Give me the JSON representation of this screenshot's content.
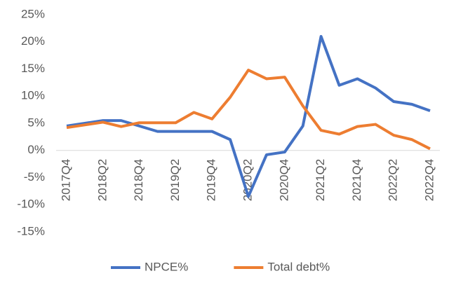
{
  "chart_data": {
    "type": "line",
    "categories": [
      "2017Q4",
      null,
      "2018Q2",
      null,
      "2018Q4",
      null,
      "2019Q2",
      null,
      "2019Q4",
      null,
      "2020Q2",
      null,
      "2020Q4",
      null,
      "2021Q2",
      null,
      "2021Q4",
      null,
      "2022Q2",
      null,
      "2022Q4"
    ],
    "series": [
      {
        "name": "NPCE%",
        "color": "#4472c4",
        "values": [
          4.5,
          5,
          5.5,
          5.5,
          4.5,
          3.5,
          3.5,
          3.5,
          3.5,
          2,
          -8.5,
          -0.8,
          -0.3,
          4.5,
          21,
          12,
          13.2,
          11.5,
          9,
          8.5,
          7.3
        ]
      },
      {
        "name": "Total debt%",
        "color": "#ed7d31",
        "values": [
          4.2,
          4.7,
          5.2,
          4.4,
          5.1,
          5.1,
          5.1,
          7,
          5.8,
          9.8,
          14.8,
          13.2,
          13.5,
          8.2,
          3.7,
          3.0,
          4.4,
          4.8,
          2.8,
          2,
          0.3
        ]
      }
    ],
    "ylim": [
      -15,
      25
    ],
    "yticks": [
      {
        "value": -15,
        "label": "-15%"
      },
      {
        "value": -10,
        "label": "-10%"
      },
      {
        "value": -5,
        "label": "-5%"
      },
      {
        "value": 0,
        "label": "0%"
      },
      {
        "value": 5,
        "label": "5%"
      },
      {
        "value": 10,
        "label": "10%"
      },
      {
        "value": 15,
        "label": "15%"
      },
      {
        "value": 20,
        "label": "20%"
      },
      {
        "value": 25,
        "label": "25%"
      }
    ],
    "legend": "bottom"
  }
}
